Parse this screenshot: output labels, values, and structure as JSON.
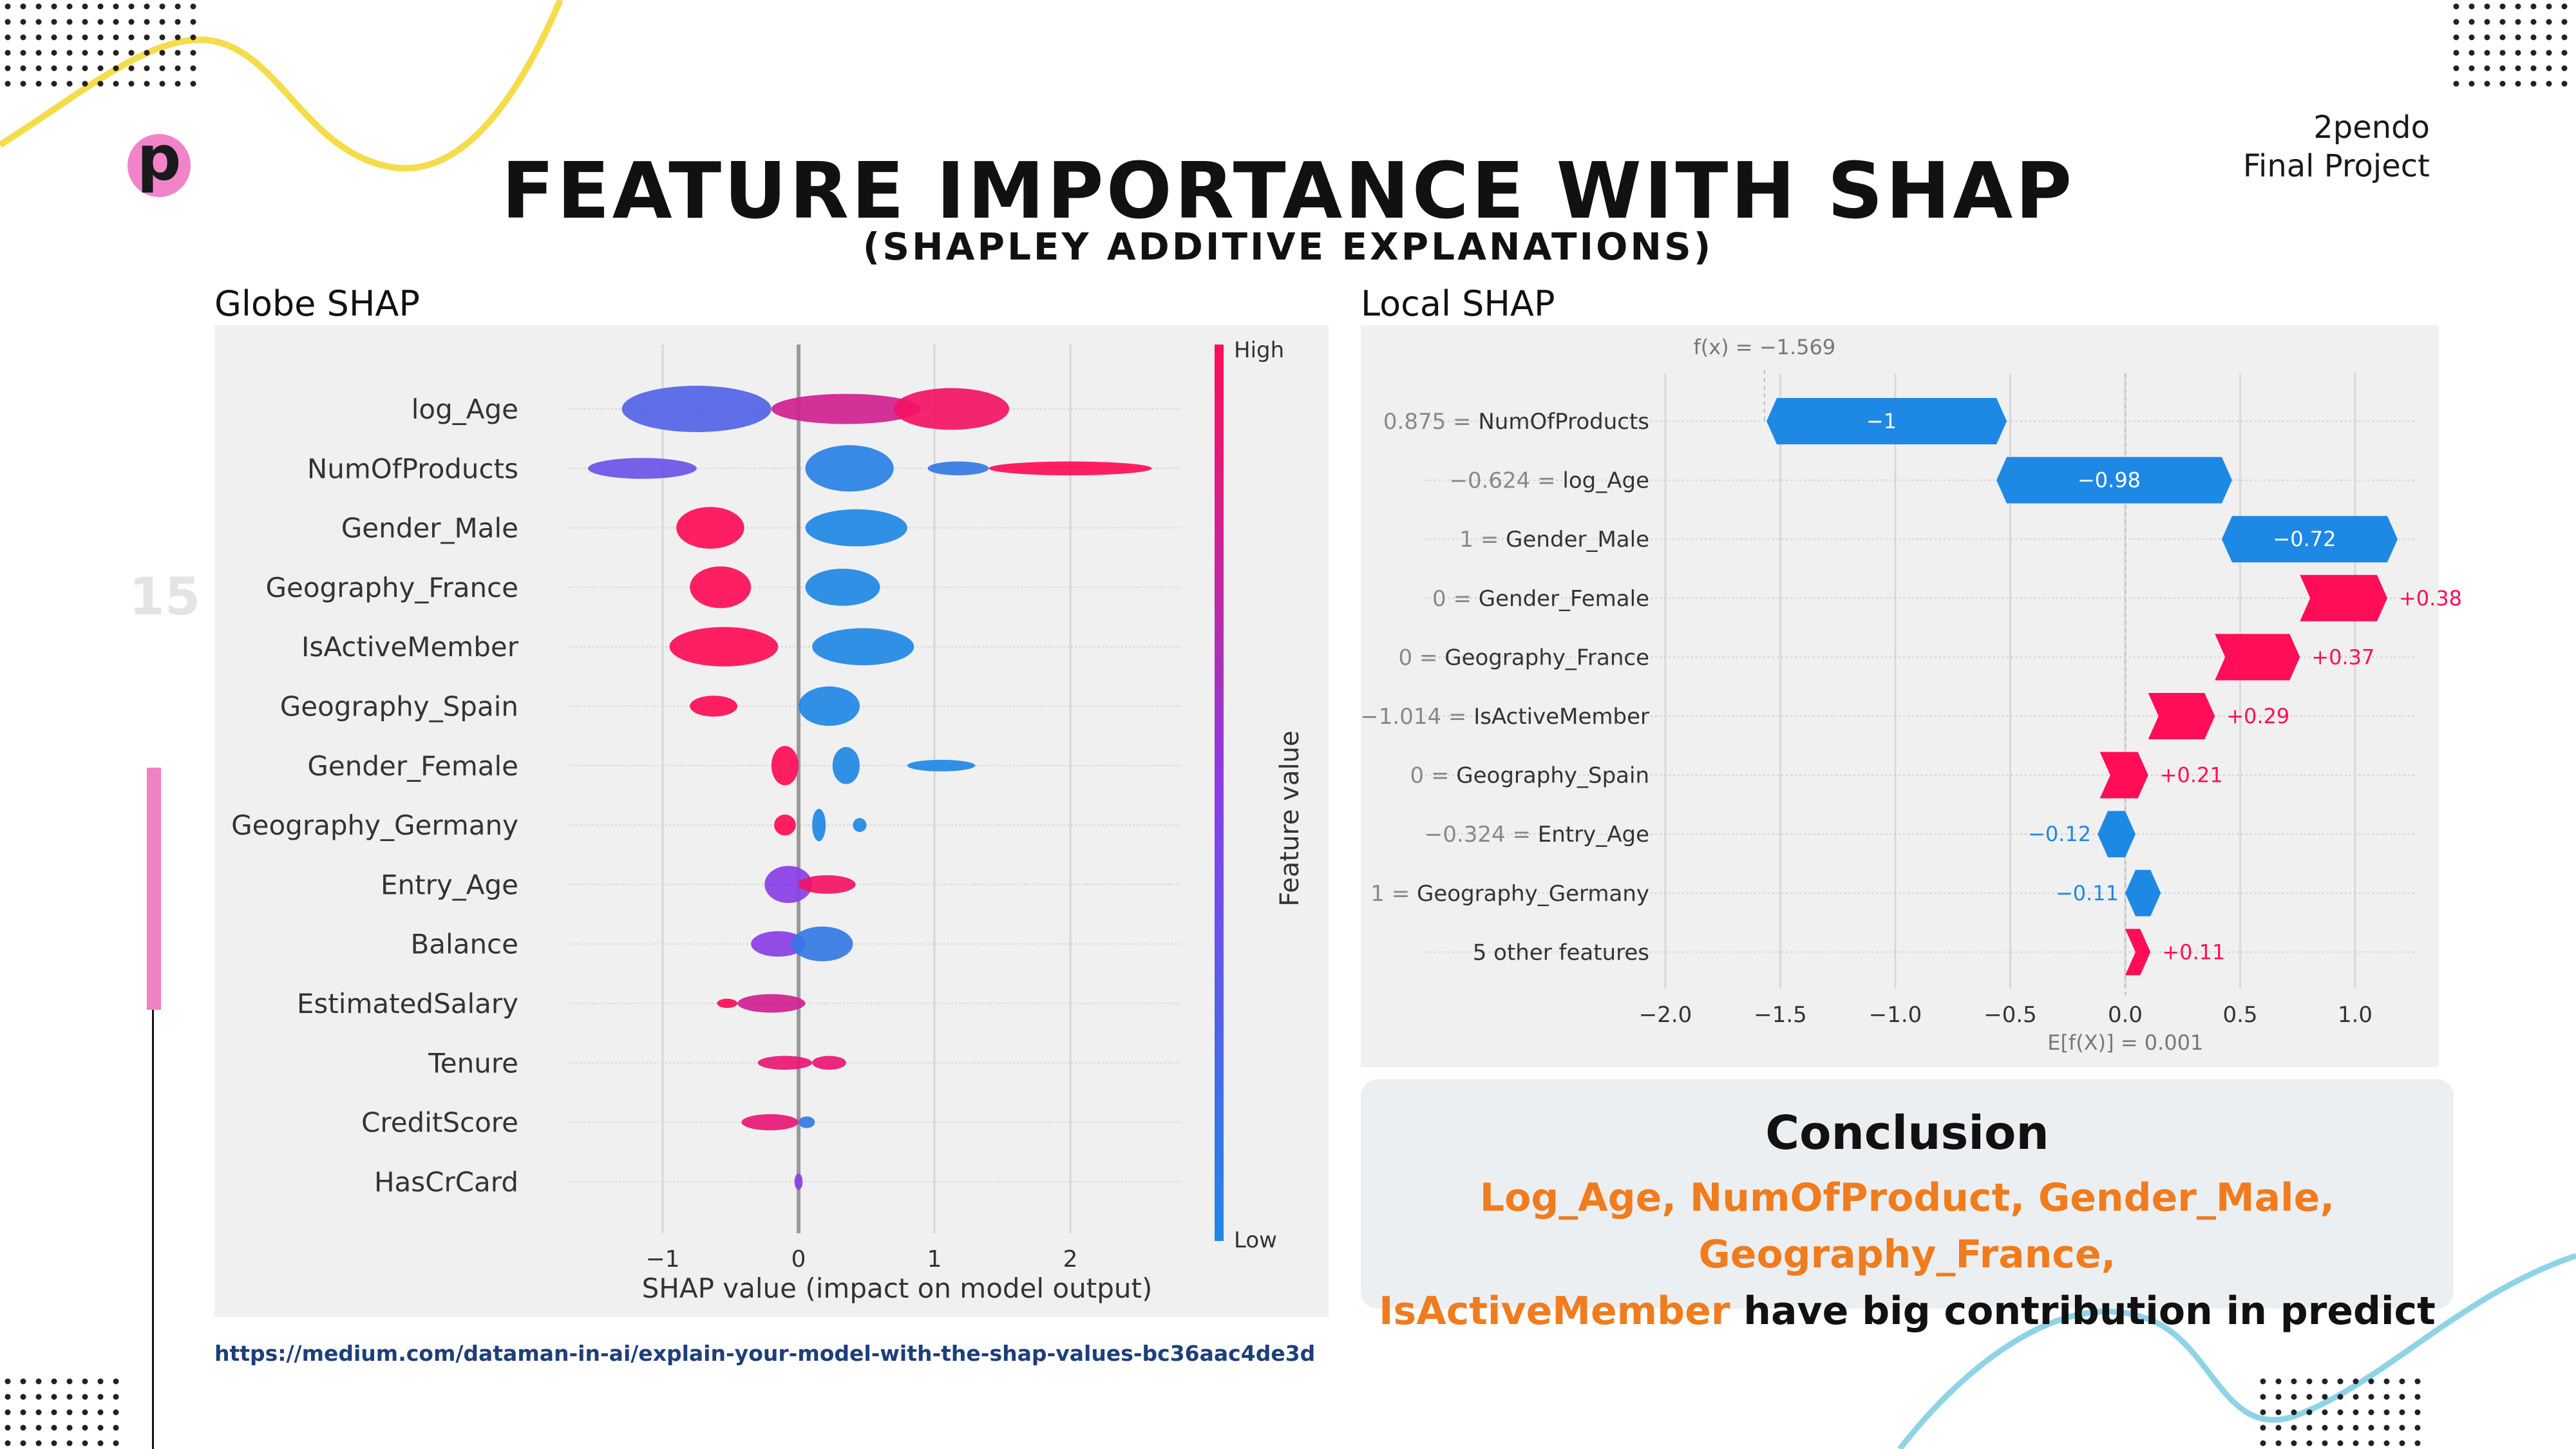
{
  "brand": {
    "line1": "2pendo",
    "line2": "Final Project",
    "logo_letter": "p"
  },
  "slide": {
    "title": "FEATURE IMPORTANCE WITH SHAP",
    "subtitle": "(SHAPLEY ADDITIVE EXPLANATIONS)",
    "page_number": "15",
    "source_link": "https://medium.com/dataman-in-ai/explain-your-model-with-the-shap-values-bc36aac4de3d"
  },
  "colors": {
    "accent_pink": "#f184c9",
    "deco_yellow": "#f5dc4a",
    "deco_blue": "#8fd3e6",
    "highlight_orange": "#f07c1e",
    "shap_red": "#ff0d57",
    "shap_blue": "#1e88e5"
  },
  "globe": {
    "label": "Globe SHAP"
  },
  "local": {
    "label": "Local SHAP"
  },
  "conclusion": {
    "title": "Conclusion",
    "highlight_line1": "Log_Age, NumOfProduct, Gender_Male, Geography_France,",
    "highlight_line2": "IsActiveMember",
    "rest_line2": " have big contribution in predict"
  },
  "chart_data": [
    {
      "type": "scatter",
      "subtype": "beeswarm",
      "xlabel": "SHAP value (impact on model output)",
      "xticks": [
        "−1",
        "0",
        "1",
        "2"
      ],
      "xlim": [
        -1.7,
        2.8
      ],
      "colorbar": {
        "label": "Feature value",
        "high": "High",
        "low": "Low"
      },
      "features": [
        {
          "name": "log_Age",
          "blobs": [
            {
              "x0": -1.3,
              "x1": -0.2,
              "h": 1.0,
              "c": 0.25
            },
            {
              "x0": -0.2,
              "x1": 0.9,
              "h": 0.65,
              "c": 0.8
            },
            {
              "x0": 0.7,
              "x1": 1.55,
              "h": 0.9,
              "c": 0.95
            }
          ]
        },
        {
          "name": "NumOfProducts",
          "blobs": [
            {
              "x0": -1.55,
              "x1": -0.75,
              "h": 0.45,
              "c": 0.35
            },
            {
              "x0": 0.05,
              "x1": 0.7,
              "h": 1.0,
              "c": 0.05
            },
            {
              "x0": 0.95,
              "x1": 1.4,
              "h": 0.3,
              "c": 0.1
            },
            {
              "x0": 1.4,
              "x1": 2.6,
              "h": 0.3,
              "c": 1.0
            }
          ]
        },
        {
          "name": "Gender_Male",
          "blobs": [
            {
              "x0": -0.9,
              "x1": -0.4,
              "h": 0.9,
              "c": 1.0
            },
            {
              "x0": 0.05,
              "x1": 0.8,
              "h": 0.8,
              "c": 0.0
            }
          ]
        },
        {
          "name": "Geography_France",
          "blobs": [
            {
              "x0": -0.8,
              "x1": -0.35,
              "h": 0.9,
              "c": 1.0
            },
            {
              "x0": 0.05,
              "x1": 0.6,
              "h": 0.8,
              "c": 0.0
            }
          ]
        },
        {
          "name": "IsActiveMember",
          "blobs": [
            {
              "x0": -0.95,
              "x1": -0.15,
              "h": 0.85,
              "c": 1.0
            },
            {
              "x0": 0.1,
              "x1": 0.85,
              "h": 0.8,
              "c": 0.0
            }
          ]
        },
        {
          "name": "Geography_Spain",
          "blobs": [
            {
              "x0": -0.8,
              "x1": -0.45,
              "h": 0.45,
              "c": 1.0
            },
            {
              "x0": 0.0,
              "x1": 0.45,
              "h": 0.85,
              "c": 0.0
            }
          ]
        },
        {
          "name": "Gender_Female",
          "blobs": [
            {
              "x0": -0.2,
              "x1": 0.0,
              "h": 0.85,
              "c": 1.0
            },
            {
              "x0": 0.25,
              "x1": 0.45,
              "h": 0.8,
              "c": 0.0
            },
            {
              "x0": 0.8,
              "x1": 1.3,
              "h": 0.25,
              "c": 0.0
            }
          ]
        },
        {
          "name": "Geography_Germany",
          "blobs": [
            {
              "x0": -0.18,
              "x1": -0.02,
              "h": 0.45,
              "c": 1.0
            },
            {
              "x0": 0.1,
              "x1": 0.2,
              "h": 0.7,
              "c": 0.0
            },
            {
              "x0": 0.4,
              "x1": 0.5,
              "h": 0.3,
              "c": 0.0
            }
          ]
        },
        {
          "name": "Entry_Age",
          "blobs": [
            {
              "x0": -0.25,
              "x1": 0.1,
              "h": 0.8,
              "c": 0.5
            },
            {
              "x0": 0.0,
              "x1": 0.42,
              "h": 0.4,
              "c": 0.95
            }
          ]
        },
        {
          "name": "Balance",
          "blobs": [
            {
              "x0": -0.35,
              "x1": 0.05,
              "h": 0.55,
              "c": 0.5
            },
            {
              "x0": -0.05,
              "x1": 0.4,
              "h": 0.75,
              "c": 0.1
            }
          ]
        },
        {
          "name": "EstimatedSalary",
          "blobs": [
            {
              "x0": -0.6,
              "x1": -0.45,
              "h": 0.2,
              "c": 1.0
            },
            {
              "x0": -0.45,
              "x1": 0.05,
              "h": 0.4,
              "c": 0.8
            }
          ]
        },
        {
          "name": "Tenure",
          "blobs": [
            {
              "x0": -0.3,
              "x1": 0.1,
              "h": 0.3,
              "c": 0.9
            },
            {
              "x0": 0.1,
              "x1": 0.35,
              "h": 0.3,
              "c": 0.9
            }
          ]
        },
        {
          "name": "CreditScore",
          "blobs": [
            {
              "x0": -0.42,
              "x1": 0.0,
              "h": 0.35,
              "c": 0.9
            },
            {
              "x0": 0.0,
              "x1": 0.12,
              "h": 0.25,
              "c": 0.1
            }
          ]
        },
        {
          "name": "HasCrCard",
          "blobs": [
            {
              "x0": -0.03,
              "x1": 0.03,
              "h": 0.35,
              "c": 0.5
            }
          ]
        }
      ]
    },
    {
      "type": "bar",
      "subtype": "waterfall",
      "fx_label": "f(x) = −1.569",
      "base_label": "E[f(X)] = 0.001",
      "base_value": 0.001,
      "fx_value": -1.569,
      "xlim": [
        -2.2,
        1.3
      ],
      "xticks": [
        -2.0,
        -1.5,
        -1.0,
        -0.5,
        0.0,
        0.5,
        1.0
      ],
      "xtick_labels": [
        "−2.0",
        "−1.5",
        "−1.0",
        "−0.5",
        "0.0",
        "0.5",
        "1.0"
      ],
      "rows": [
        {
          "value_label": "0.875",
          "feature": "NumOfProducts",
          "contribution": -1.0,
          "label": "−1",
          "start": -0.56
        },
        {
          "value_label": "−0.624",
          "feature": "log_Age",
          "contribution": -0.98,
          "label": "−0.98",
          "start": 0.42
        },
        {
          "value_label": "1",
          "feature": "Gender_Male",
          "contribution": -0.72,
          "label": "−0.72",
          "start": 1.14
        },
        {
          "value_label": "0",
          "feature": "Gender_Female",
          "contribution": 0.38,
          "label": "+0.38",
          "start": 0.76
        },
        {
          "value_label": "0",
          "feature": "Geography_France",
          "contribution": 0.37,
          "label": "+0.37",
          "start": 0.39
        },
        {
          "value_label": "−1.014",
          "feature": "IsActiveMember",
          "contribution": 0.29,
          "label": "+0.29",
          "start": 0.1
        },
        {
          "value_label": "0",
          "feature": "Geography_Spain",
          "contribution": 0.21,
          "label": "+0.21",
          "start": -0.11
        },
        {
          "value_label": "−0.324",
          "feature": "Entry_Age",
          "contribution": -0.12,
          "label": "−0.12",
          "start": 0.0
        },
        {
          "value_label": "1",
          "feature": "Geography_Germany",
          "contribution": -0.11,
          "label": "−0.11",
          "start": 0.11
        },
        {
          "value_label": "5 other features",
          "feature": "",
          "contribution": 0.11,
          "label": "+0.11",
          "start": 0.0
        }
      ]
    }
  ]
}
